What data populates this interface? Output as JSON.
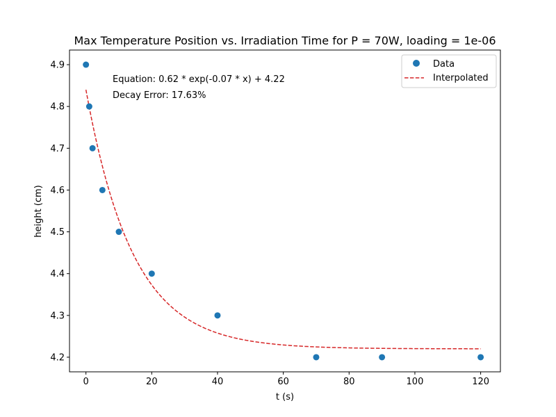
{
  "chart_data": {
    "type": "scatter",
    "title": "Max Temperature Position vs. Irradiation Time for P = 70W, loading = 1e-06",
    "xlabel": "t (s)",
    "ylabel": "height (cm)",
    "xlim": [
      -5,
      126
    ],
    "ylim": [
      4.165,
      4.935
    ],
    "x_ticks": [
      0,
      20,
      40,
      60,
      80,
      100,
      120
    ],
    "y_ticks": [
      4.2,
      4.3,
      4.4,
      4.5,
      4.6,
      4.7,
      4.8,
      4.9
    ],
    "grid": false,
    "legend_position": "top-right",
    "series": [
      {
        "name": "Data",
        "kind": "scatter",
        "color": "#1f77b4",
        "x": [
          0,
          1,
          2,
          5,
          10,
          20,
          40,
          70,
          90,
          120
        ],
        "y": [
          4.9,
          4.8,
          4.7,
          4.6,
          4.5,
          4.4,
          4.3,
          4.2,
          4.2,
          4.2
        ]
      },
      {
        "name": "Interpolated",
        "kind": "line",
        "style": "dashed",
        "color": "#d62728",
        "fit": {
          "a": 0.62,
          "b": 0.07,
          "c": 4.22,
          "x_start": 0,
          "x_end": 120
        }
      }
    ],
    "annotations": [
      "Equation: 0.62 * exp(-0.07 * x) + 4.22",
      "Decay Error: 17.63%"
    ]
  }
}
